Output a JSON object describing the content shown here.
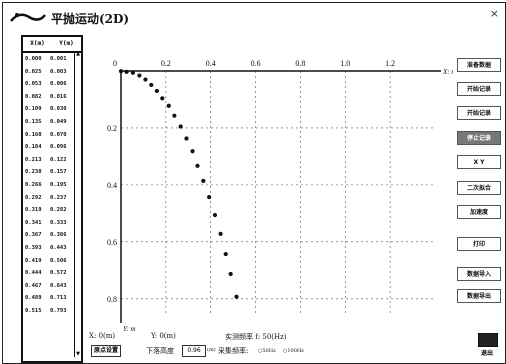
{
  "window": {
    "title": "平抛运动(2D)",
    "close_glyph": "×"
  },
  "table": {
    "headers": [
      "X(m)",
      "Y(m)"
    ],
    "rows": [
      [
        "0.000",
        "0.001"
      ],
      [
        "0.025",
        "0.003"
      ],
      [
        "0.053",
        "0.006"
      ],
      [
        "0.082",
        "0.016"
      ],
      [
        "0.109",
        "0.030"
      ],
      [
        "0.135",
        "0.049"
      ],
      [
        "0.160",
        "0.070"
      ],
      [
        "0.184",
        "0.096"
      ],
      [
        "0.213",
        "0.122"
      ],
      [
        "0.238",
        "0.157"
      ],
      [
        "0.266",
        "0.195"
      ],
      [
        "0.292",
        "0.237"
      ],
      [
        "0.319",
        "0.282"
      ],
      [
        "0.341",
        "0.333"
      ],
      [
        "0.367",
        "0.386"
      ],
      [
        "0.393",
        "0.443"
      ],
      [
        "0.419",
        "0.506"
      ],
      [
        "0.444",
        "0.572"
      ],
      [
        "0.467",
        "0.643"
      ],
      [
        "0.489",
        "0.713"
      ],
      [
        "0.515",
        "0.793"
      ]
    ]
  },
  "chart_data": {
    "type": "scatter",
    "xlabel": "X: m",
    "ylabel": "Y: m",
    "xlim": [
      0,
      1.4
    ],
    "ylim": [
      0,
      0.85
    ],
    "y_inverted": true,
    "grid": true,
    "x_ticks": [
      "0",
      "0.2",
      "0.4",
      "0.6",
      "0.8",
      "1.0",
      "1.2"
    ],
    "x_tick_values": [
      0,
      0.2,
      0.4,
      0.6,
      0.8,
      1.0,
      1.2
    ],
    "y_ticks": [
      "0.2",
      "0.4",
      "0.6",
      "0.8"
    ],
    "y_tick_values": [
      0.2,
      0.4,
      0.6,
      0.8
    ],
    "points": [
      [
        0.0,
        0.001
      ],
      [
        0.025,
        0.003
      ],
      [
        0.053,
        0.006
      ],
      [
        0.082,
        0.016
      ],
      [
        0.109,
        0.03
      ],
      [
        0.135,
        0.049
      ],
      [
        0.16,
        0.07
      ],
      [
        0.184,
        0.096
      ],
      [
        0.213,
        0.122
      ],
      [
        0.238,
        0.157
      ],
      [
        0.266,
        0.195
      ],
      [
        0.292,
        0.237
      ],
      [
        0.319,
        0.282
      ],
      [
        0.341,
        0.333
      ],
      [
        0.367,
        0.386
      ],
      [
        0.393,
        0.443
      ],
      [
        0.419,
        0.506
      ],
      [
        0.444,
        0.572
      ],
      [
        0.467,
        0.643
      ],
      [
        0.489,
        0.713
      ],
      [
        0.515,
        0.793
      ]
    ]
  },
  "buttons": [
    {
      "name": "device-settings-button",
      "label": "准备数据",
      "dark": false
    },
    {
      "name": "start-record-button",
      "label": "开始记录",
      "dark": false
    },
    {
      "name": "record-button",
      "label": "开始记录",
      "dark": false
    },
    {
      "name": "stop-record-button",
      "label": "停止记录",
      "dark": true
    },
    {
      "name": "x-y-button",
      "label": "X  Y",
      "dark": false
    },
    {
      "name": "fit-button",
      "label": "二次拟合",
      "dark": false
    },
    {
      "name": "speed-button",
      "label": "加速度",
      "dark": false
    },
    {
      "name": "print-button",
      "label": "打印",
      "dark": false
    },
    {
      "name": "import-data-button",
      "label": "数据导入",
      "dark": false
    },
    {
      "name": "export-data-button",
      "label": "数据导出",
      "dark": false
    }
  ],
  "status": {
    "x_label": "X:  0(m)",
    "y_label": "Y:  0(m)",
    "freq_label": "实测频率 f: 50(Hz)",
    "drop_label": "下落高度",
    "drop_value": "0.96",
    "drop_unit": "(m)",
    "sample_label": "采集频率:",
    "sample_opt1": "50Hz",
    "sample_opt2": "100Hz",
    "origin_button": "原点设置",
    "exit_button": "退出"
  }
}
